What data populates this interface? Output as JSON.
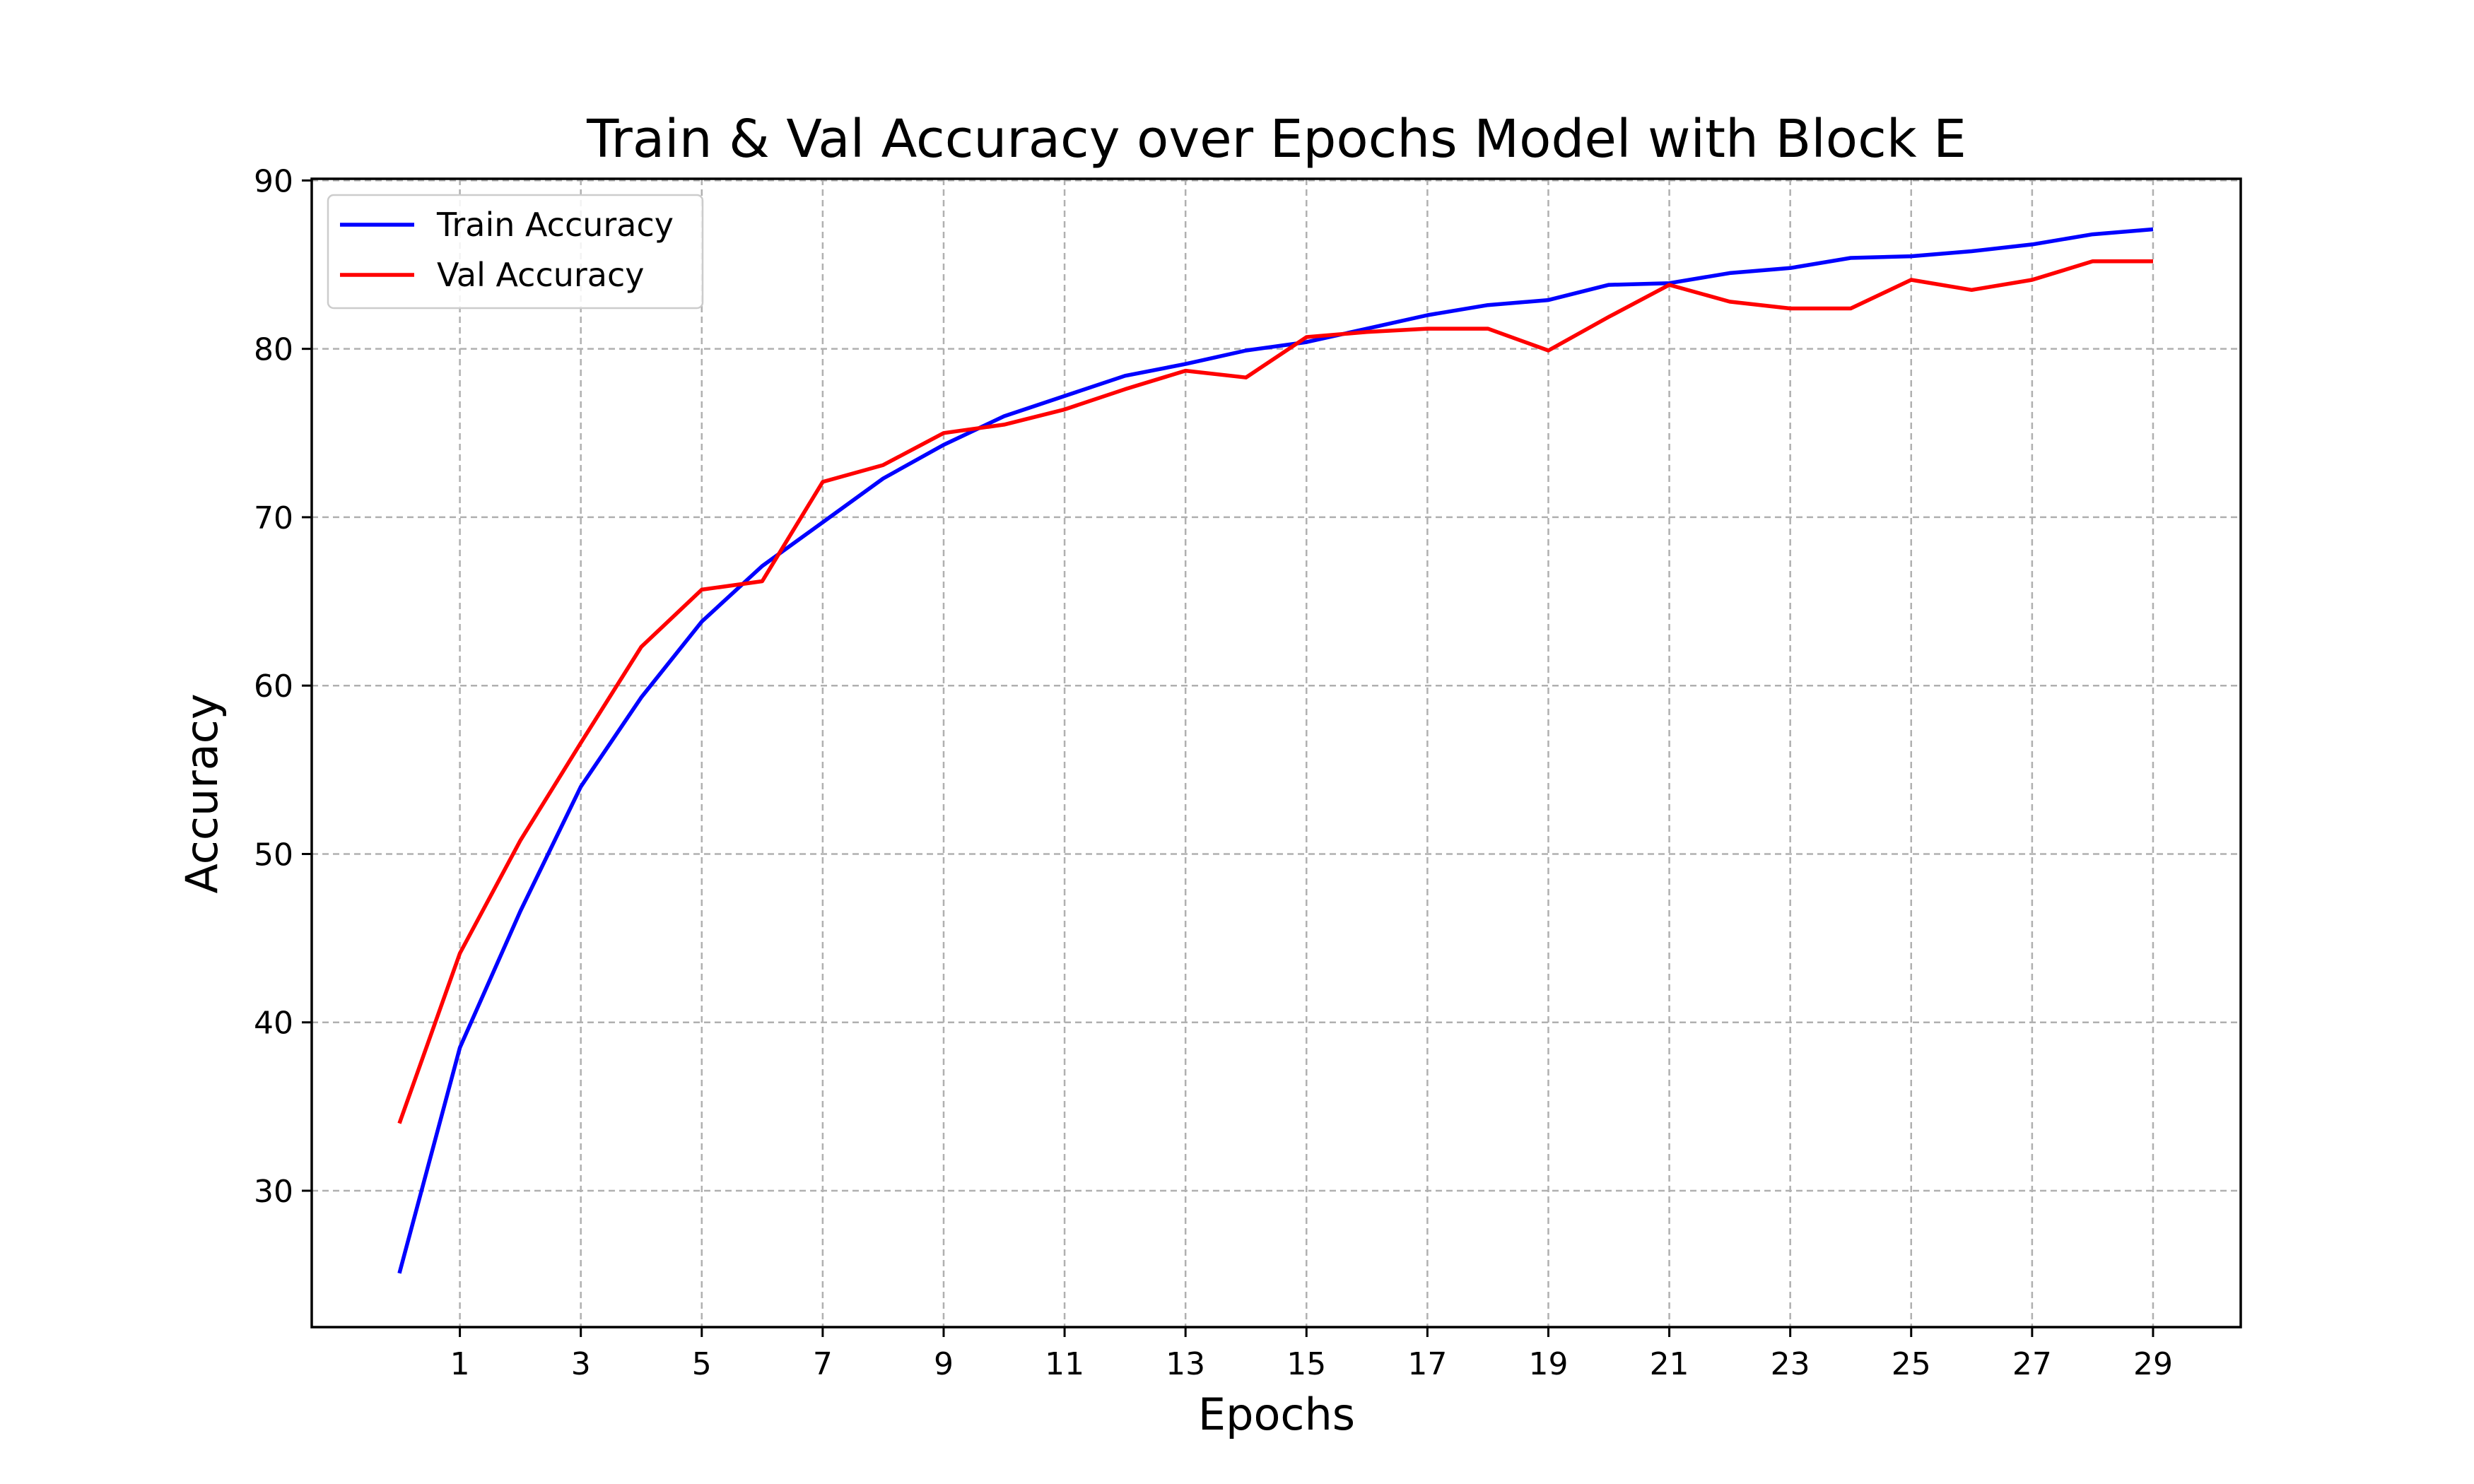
{
  "chart_data": {
    "type": "line",
    "title": "Train & Val Accuracy over Epochs Model with Block E",
    "xlabel": "Epochs",
    "ylabel": "Accuracy",
    "x": [
      0,
      1,
      2,
      3,
      4,
      5,
      6,
      7,
      8,
      9,
      10,
      11,
      12,
      13,
      14,
      15,
      16,
      17,
      18,
      19,
      20,
      21,
      22,
      23,
      24,
      25,
      26,
      27,
      28,
      29
    ],
    "xticks": [
      1,
      3,
      5,
      7,
      9,
      11,
      13,
      15,
      17,
      19,
      21,
      23,
      25,
      27,
      29
    ],
    "yticks": [
      30,
      40,
      50,
      60,
      70,
      80,
      90
    ],
    "xlim": [
      -1.45,
      30.45
    ],
    "ylim": [
      21.9,
      90.1
    ],
    "grid": true,
    "legend_position": "upper left",
    "series": [
      {
        "name": "Train Accuracy",
        "color": "#0000ff",
        "values": [
          25.1,
          38.5,
          46.6,
          54.0,
          59.3,
          63.8,
          67.1,
          69.7,
          72.3,
          74.3,
          76.0,
          77.2,
          78.4,
          79.1,
          79.9,
          80.4,
          81.2,
          82.0,
          82.6,
          82.9,
          83.8,
          83.9,
          84.5,
          84.8,
          85.4,
          85.5,
          85.8,
          86.2,
          86.8,
          87.1
        ]
      },
      {
        "name": "Val Accuracy",
        "color": "#ff0000",
        "values": [
          34.0,
          44.1,
          50.8,
          56.6,
          62.3,
          65.7,
          66.2,
          72.1,
          73.1,
          75.0,
          75.5,
          76.4,
          77.6,
          78.7,
          78.3,
          80.7,
          81.0,
          81.2,
          81.2,
          79.9,
          81.9,
          83.8,
          82.8,
          82.4,
          82.4,
          84.1,
          83.5,
          84.1,
          85.2,
          85.2
        ]
      }
    ]
  }
}
